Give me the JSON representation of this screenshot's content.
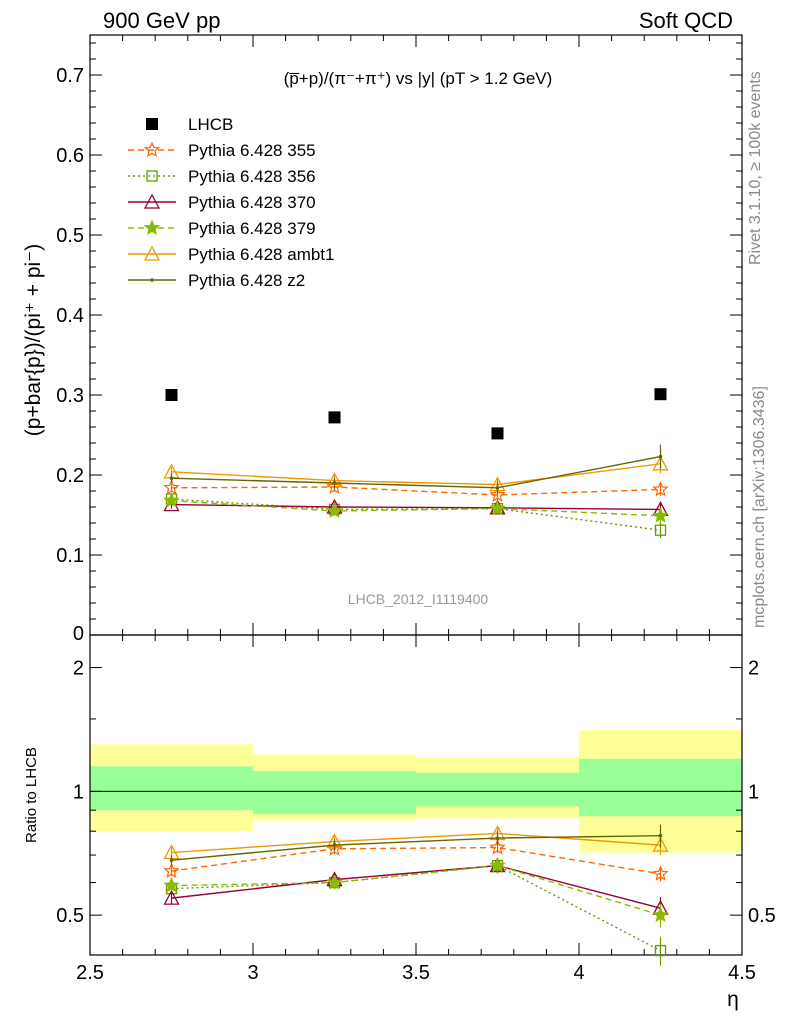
{
  "header": {
    "left": "900 GeV pp",
    "right": "Soft QCD"
  },
  "side_text": {
    "rivet": "Rivet 3.1.10, ≥ 100k events",
    "mcplots": "mcplots.cern.ch [arXiv:1306.3436]"
  },
  "chart_data": [
    {
      "type": "scatter",
      "title": "(p̅+p)/(π⁻+π⁺) vs |y| (pT > 1.2 GeV)",
      "watermark": "LHCB_2012_I1119400",
      "xlabel": "η",
      "ylabel": "(p+bar{p})/(pi⁺ + pi⁻)",
      "xlim": [
        2.5,
        4.5
      ],
      "ylim": [
        0,
        0.75
      ],
      "yticks": [
        "0.1",
        "0.2",
        "0.3",
        "0.4",
        "0.5",
        "0.6",
        "0.7"
      ],
      "legend_position": "top-left",
      "x": [
        2.75,
        3.25,
        3.75,
        4.25
      ],
      "series": [
        {
          "name": "LHCB",
          "color": "#000000",
          "marker": "square",
          "line": "none",
          "values": [
            0.3,
            0.272,
            0.252,
            0.301
          ]
        },
        {
          "name": "Pythia 6.428 355",
          "color": "#ff6600",
          "marker": "star-open",
          "line": "dashed",
          "values": [
            0.184,
            0.185,
            0.175,
            0.182
          ],
          "errors": [
            0.005,
            0.006,
            0.006,
            0.008
          ]
        },
        {
          "name": "Pythia 6.428 356",
          "color": "#669900",
          "marker": "square-open",
          "line": "dotted",
          "values": [
            0.17,
            0.157,
            0.158,
            0.131
          ],
          "errors": [
            0.005,
            0.006,
            0.007,
            0.01
          ]
        },
        {
          "name": "Pythia 6.428 370",
          "color": "#990033",
          "marker": "triangle-open",
          "line": "solid",
          "values": [
            0.163,
            0.16,
            0.159,
            0.157
          ],
          "errors": [
            0.005,
            0.006,
            0.007,
            0.01
          ]
        },
        {
          "name": "Pythia 6.428 379",
          "color": "#88bb00",
          "marker": "star",
          "line": "dashed",
          "values": [
            0.168,
            0.155,
            0.158,
            0.149
          ],
          "errors": [
            0.005,
            0.006,
            0.007,
            0.01
          ]
        },
        {
          "name": "Pythia 6.428 ambt1",
          "color": "#ee9900",
          "marker": "triangle-open",
          "line": "solid",
          "values": [
            0.204,
            0.193,
            0.188,
            0.214
          ],
          "errors": [
            0.006,
            0.007,
            0.008,
            0.012
          ]
        },
        {
          "name": "Pythia 6.428 z2",
          "color": "#666600",
          "marker": "dot",
          "line": "solid",
          "values": [
            0.196,
            0.19,
            0.184,
            0.223
          ],
          "errors": [
            0.006,
            0.007,
            0.008,
            0.015
          ]
        }
      ]
    },
    {
      "type": "scatter",
      "ylabel": "Ratio to LHCB",
      "xlabel": "η",
      "xlim": [
        2.5,
        4.5
      ],
      "ylim": [
        0.4,
        2.4
      ],
      "log_y": true,
      "yticks": [
        "0.5",
        "1",
        "2"
      ],
      "xticks": [
        "2.5",
        "3",
        "3.5",
        "4",
        "4.5"
      ],
      "x": [
        2.75,
        3.25,
        3.75,
        4.25
      ],
      "bands": [
        {
          "x_from": 2.5,
          "x_to": 3.0,
          "inner": [
            0.9,
            1.15
          ],
          "outer": [
            0.8,
            1.3
          ]
        },
        {
          "x_from": 3.0,
          "x_to": 3.5,
          "inner": [
            0.88,
            1.12
          ],
          "outer": [
            0.85,
            1.23
          ]
        },
        {
          "x_from": 3.5,
          "x_to": 4.0,
          "inner": [
            0.92,
            1.11
          ],
          "outer": [
            0.86,
            1.21
          ]
        },
        {
          "x_from": 4.0,
          "x_to": 4.5,
          "inner": [
            0.87,
            1.2
          ],
          "outer": [
            0.71,
            1.41
          ]
        }
      ],
      "series": [
        {
          "name": "Pythia 6.428 355",
          "values": [
            0.64,
            0.725,
            0.73,
            0.63
          ]
        },
        {
          "name": "Pythia 6.428 356",
          "values": [
            0.58,
            0.6,
            0.66,
            0.41
          ]
        },
        {
          "name": "Pythia 6.428 370",
          "values": [
            0.55,
            0.61,
            0.66,
            0.52
          ]
        },
        {
          "name": "Pythia 6.428 379",
          "values": [
            0.59,
            0.6,
            0.66,
            0.5
          ]
        },
        {
          "name": "Pythia 6.428 ambt1",
          "values": [
            0.71,
            0.755,
            0.79,
            0.74
          ]
        },
        {
          "name": "Pythia 6.428 z2",
          "values": [
            0.68,
            0.74,
            0.77,
            0.78
          ]
        }
      ]
    }
  ],
  "colors": {
    "band_inner": "#99ff99",
    "band_outer": "#ffff99",
    "axis": "#000000",
    "side_text": "#888888"
  }
}
